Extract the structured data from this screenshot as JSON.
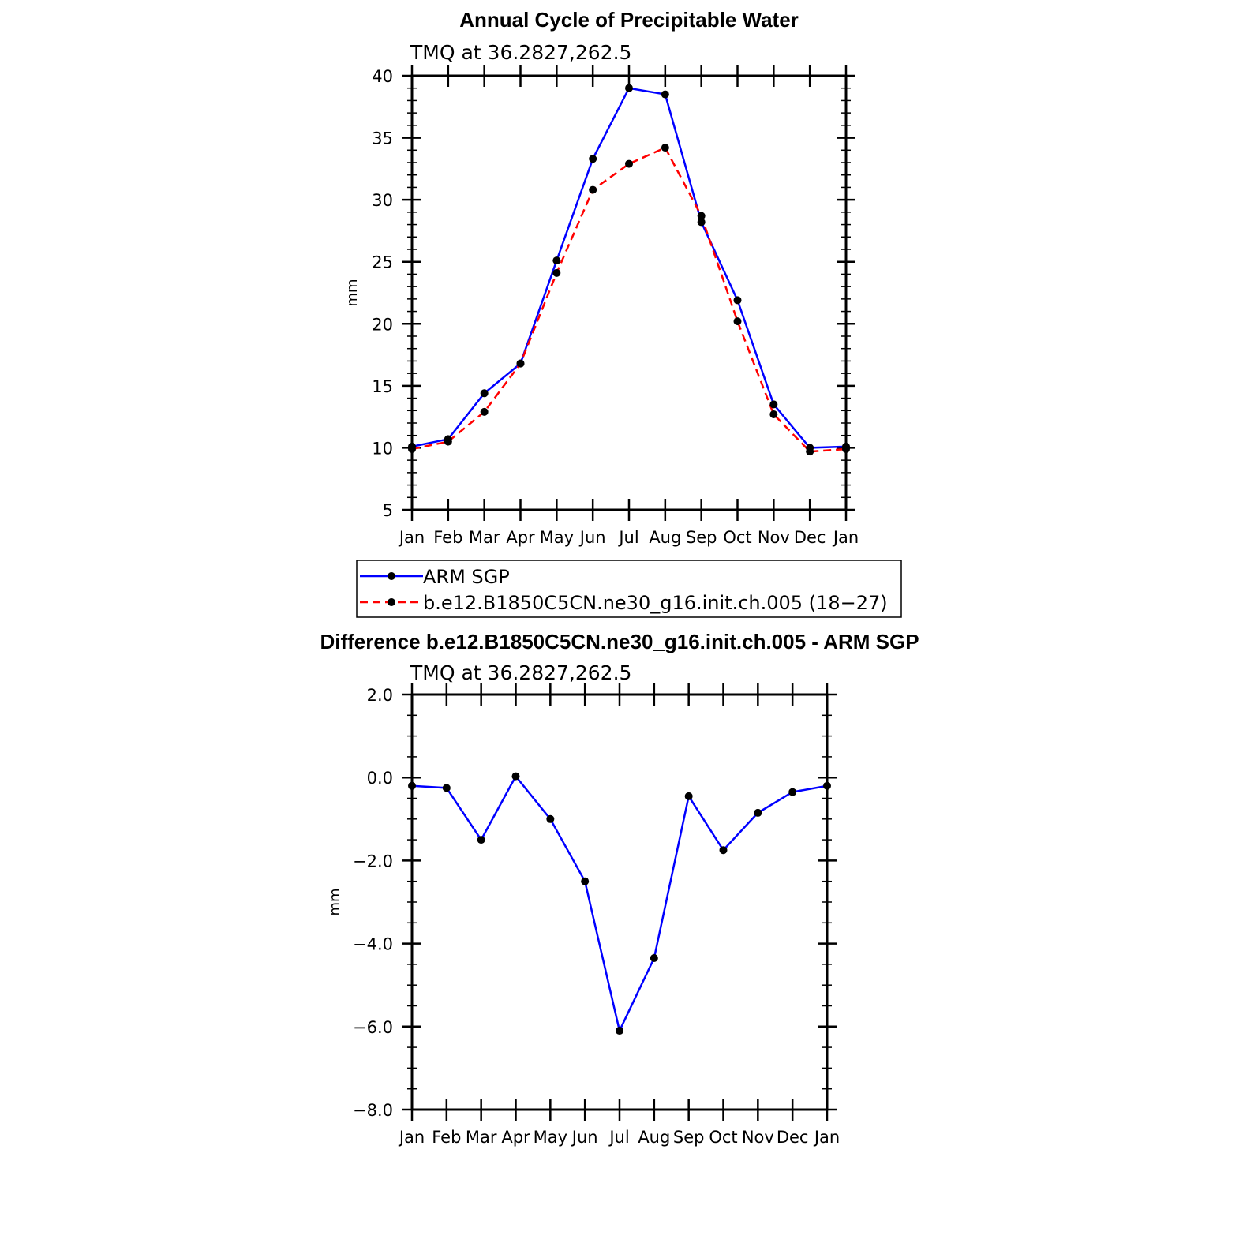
{
  "chart_data": [
    {
      "type": "line",
      "title": "Annual Cycle of Precipitable Water",
      "subtitle": "TMQ at 36.2827,262.5",
      "xlabel": "",
      "ylabel": "mm",
      "categories": [
        "Jan",
        "Feb",
        "Mar",
        "Apr",
        "May",
        "Jun",
        "Jul",
        "Aug",
        "Sep",
        "Oct",
        "Nov",
        "Dec",
        "Jan"
      ],
      "ylim": [
        5,
        40
      ],
      "yticks": [
        5,
        10,
        15,
        20,
        25,
        30,
        35,
        40
      ],
      "ytick_labels": [
        "5",
        "10",
        "15",
        "20",
        "25",
        "30",
        "35",
        "40"
      ],
      "series": [
        {
          "name": "ARM SGP",
          "color": "#0000ff",
          "dash": "solid",
          "values": [
            10.1,
            10.7,
            14.4,
            16.8,
            25.1,
            33.3,
            39.0,
            38.5,
            28.2,
            21.9,
            13.5,
            10.0,
            10.1
          ]
        },
        {
          "name": "b.e12.B1850C5CN.ne30_g16.init.ch.005 (18−27)",
          "color": "#ff0000",
          "dash": "dashed",
          "values": [
            9.9,
            10.5,
            12.9,
            16.8,
            24.1,
            30.8,
            32.9,
            34.2,
            28.7,
            20.2,
            12.7,
            9.7,
            9.9
          ]
        }
      ],
      "legend_position": "bottom"
    },
    {
      "type": "line",
      "title": "Difference b.e12.B1850C5CN.ne30_g16.init.ch.005 - ARM SGP",
      "subtitle": "TMQ at 36.2827,262.5",
      "xlabel": "",
      "ylabel": "mm",
      "categories": [
        "Jan",
        "Feb",
        "Mar",
        "Apr",
        "May",
        "Jun",
        "Jul",
        "Aug",
        "Sep",
        "Oct",
        "Nov",
        "Dec",
        "Jan"
      ],
      "ylim": [
        -8,
        2
      ],
      "yticks": [
        -8,
        -6,
        -4,
        -2,
        0,
        2
      ],
      "ytick_labels": [
        "−8.0",
        "−6.0",
        "−4.0",
        "−2.0",
        "0.0",
        "2.0"
      ],
      "series": [
        {
          "name": "Difference",
          "color": "#0000ff",
          "dash": "solid",
          "values": [
            -0.2,
            -0.25,
            -1.5,
            0.03,
            -1.0,
            -2.5,
            -6.1,
            -4.35,
            -0.45,
            -1.75,
            -0.85,
            -0.35,
            -0.2
          ]
        }
      ]
    }
  ]
}
